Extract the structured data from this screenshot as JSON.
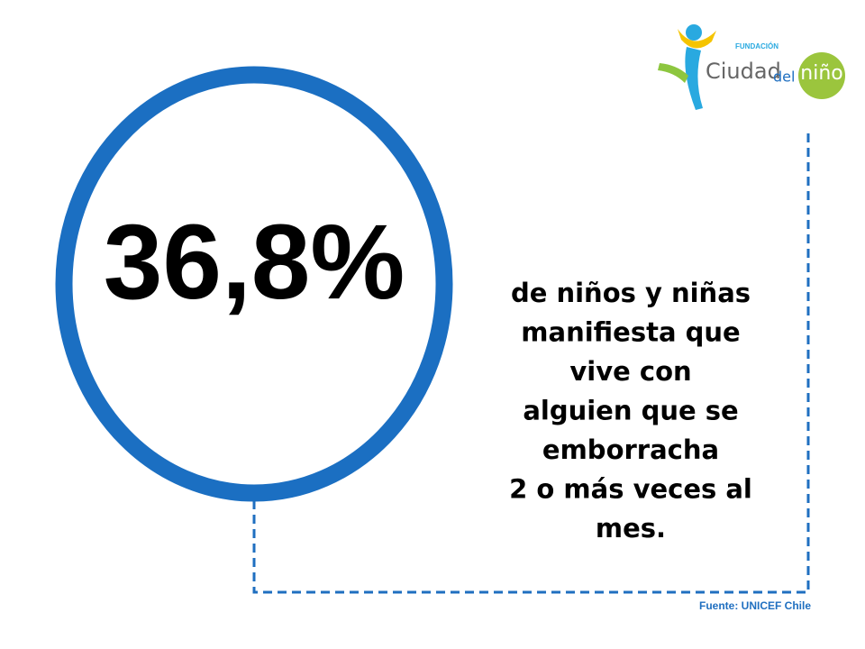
{
  "logo": {
    "top": "FUNDACIÓN",
    "name": "Ciudad",
    "middle": "del",
    "end": "niño"
  },
  "stat": "36,8%",
  "description": [
    "de niños y niñas",
    "manifiesta que",
    "vive con",
    "alguien que se",
    "emborracha",
    "2 o más veces al",
    "mes."
  ],
  "source": "Fuente: UNICEF Chile"
}
